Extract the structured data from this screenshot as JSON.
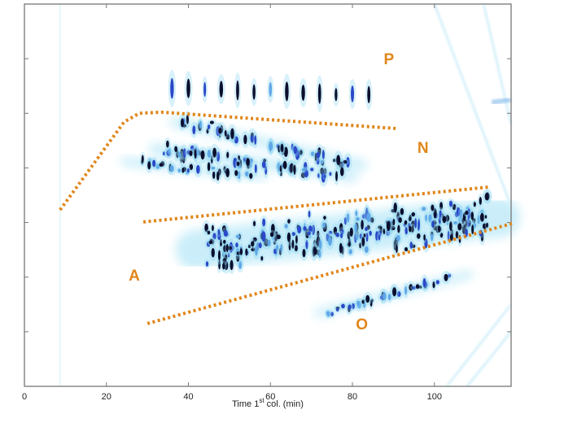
{
  "chart_data": {
    "type": "heatmap",
    "title": "",
    "xlabel": "Time 1st col. (min)",
    "xlabel_parts": {
      "pre": "Time 1",
      "sup": "st",
      "post": " col. (min)"
    },
    "ylabel": "",
    "xlim": [
      0,
      118.7
    ],
    "ylim": [
      0,
      7
    ],
    "x_ticks": [
      0,
      20,
      40,
      60,
      80,
      100
    ],
    "y_ticks": [
      1,
      2,
      3,
      4,
      5,
      6
    ],
    "y_tick_labels_shown": false,
    "grid": false,
    "colors": {
      "line": "#e0861a",
      "peak_dark": "#0b0f2e",
      "peak_mid": "#2a48c8",
      "haze": "#9fe0f5"
    },
    "region_labels": [
      {
        "text": "P",
        "x": 88.9,
        "y": 6.0
      },
      {
        "text": "N",
        "x": 97.2,
        "y": 4.38
      },
      {
        "text": "A",
        "x": 26.8,
        "y": 2.04
      },
      {
        "text": "O",
        "x": 82.3,
        "y": 1.15
      }
    ],
    "boundary_lines": [
      {
        "name": "P-N boundary",
        "points": [
          [
            8.7,
            3.23
          ],
          [
            24.3,
            4.84
          ],
          [
            28,
            5.0
          ],
          [
            33.5,
            5.02
          ],
          [
            90.9,
            4.72
          ]
        ]
      },
      {
        "name": "A-N boundary",
        "points": [
          [
            29,
            3.01
          ],
          [
            113.3,
            3.65
          ]
        ]
      },
      {
        "name": "A-O boundary",
        "points": [
          [
            30,
            1.15
          ],
          [
            118.9,
            2.98
          ]
        ]
      }
    ],
    "peak_clusters": [
      {
        "name": "vertical series",
        "from": [
          36,
          5.45
        ],
        "to": [
          84,
          5.35
        ],
        "count": 13,
        "spread": 0.04,
        "regular": true,
        "size": 1.6
      },
      {
        "name": "N stripe a",
        "from": [
          38.6,
          4.84
        ],
        "to": [
          79.5,
          4.05
        ],
        "count": 60,
        "spread": 0.07,
        "size": 1.0
      },
      {
        "name": "N stripe b",
        "from": [
          33.8,
          4.35
        ],
        "to": [
          77,
          3.85
        ],
        "count": 70,
        "spread": 0.08,
        "size": 1.0
      },
      {
        "name": "N stripe c",
        "from": [
          26.5,
          4.12
        ],
        "to": [
          55,
          3.85
        ],
        "count": 30,
        "spread": 0.06,
        "size": 0.9
      },
      {
        "name": "A band",
        "from": [
          43.7,
          2.5
        ],
        "to": [
          113,
          3.1
        ],
        "count": 260,
        "spread": 0.28,
        "size": 1.0
      },
      {
        "name": "O band",
        "from": [
          73.6,
          1.34
        ],
        "to": [
          105.4,
          2.05
        ],
        "count": 35,
        "spread": 0.05,
        "size": 0.9
      }
    ]
  }
}
